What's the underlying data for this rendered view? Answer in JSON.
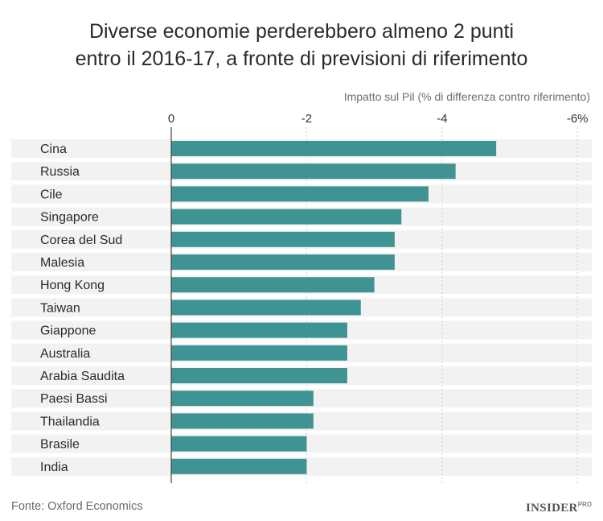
{
  "title_line1": "Diverse economie perderebbero almeno 2 punti",
  "title_line2": "entro il 2016-17, a fronte di previsioni di riferimento",
  "source": "Fonte: Oxford Economics",
  "logo": {
    "main": "INSIDER",
    "sup": "PRO"
  },
  "colors": {
    "bar": "#3f9393",
    "row_band": "#f2f2f2",
    "axis": "#444444",
    "grid": "#cccccc"
  },
  "chart_data": {
    "type": "bar",
    "orientation": "horizontal",
    "title": "Diverse economie perderebbero almeno 2 punti entro il 2016-17, a fronte di previsioni di riferimento",
    "xlabel": "Impatto sul Pil (% di differenza contro riferimento)",
    "ylabel": "",
    "xlim": [
      0,
      -6
    ],
    "x_ticks": [
      0,
      -2,
      -4,
      -6
    ],
    "x_tick_labels": [
      "0",
      "-2",
      "-4",
      "-6%"
    ],
    "grid": true,
    "categories": [
      "Cina",
      "Russia",
      "Cile",
      "Singapore",
      "Corea del Sud",
      "Malesia",
      "Hong Kong",
      "Taiwan",
      "Giappone",
      "Australia",
      "Arabia Saudita",
      "Paesi Bassi",
      "Thailandia",
      "Brasile",
      "India"
    ],
    "values": [
      -4.8,
      -4.2,
      -3.8,
      -3.4,
      -3.3,
      -3.3,
      -3.0,
      -2.8,
      -2.6,
      -2.6,
      -2.6,
      -2.1,
      -2.1,
      -2.0,
      -2.0
    ]
  }
}
